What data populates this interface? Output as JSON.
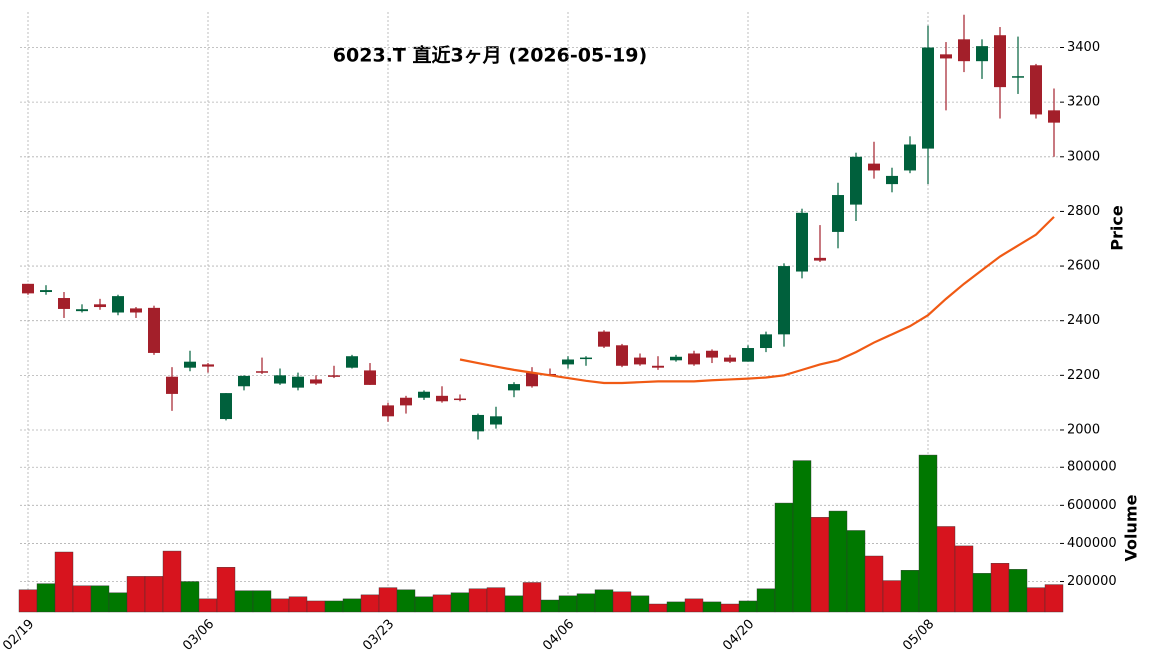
{
  "chart_data": [
    {
      "type": "candlestick",
      "title": "6023.T  直近3ヶ月  (2026-05-19)",
      "ylabel": "Price",
      "open": [
        2535,
        2505,
        2483,
        2435,
        2460,
        2430,
        2445,
        2447,
        2195,
        2228,
        2240,
        2040,
        2160,
        2215,
        2170,
        2155,
        2185,
        2200,
        2228,
        2218,
        2090,
        2118,
        2118,
        2125,
        2115,
        1995,
        2020,
        2145,
        2210,
        2205,
        2240,
        2260,
        2360,
        2310,
        2265,
        2235,
        2255,
        2280,
        2290,
        2265,
        2250,
        2300,
        2350,
        2580,
        2630,
        2725,
        2825,
        2975,
        2900,
        2950,
        3030,
        3375,
        3430,
        3350,
        3445,
        3290,
        3335,
        3170
      ],
      "high": [
        2535,
        2530,
        2505,
        2460,
        2480,
        2495,
        2450,
        2455,
        2230,
        2290,
        2245,
        2135,
        2200,
        2265,
        2225,
        2210,
        2200,
        2235,
        2275,
        2245,
        2100,
        2125,
        2145,
        2160,
        2130,
        2060,
        2085,
        2175,
        2230,
        2225,
        2270,
        2270,
        2365,
        2315,
        2280,
        2270,
        2275,
        2290,
        2295,
        2275,
        2310,
        2360,
        2610,
        2810,
        2750,
        2905,
        3015,
        3055,
        2960,
        3075,
        3480,
        3420,
        3520,
        3430,
        3475,
        3440,
        3340,
        3250
      ],
      "low": [
        2495,
        2495,
        2410,
        2430,
        2440,
        2420,
        2410,
        2275,
        2070,
        2215,
        2210,
        2035,
        2145,
        2205,
        2165,
        2145,
        2165,
        2190,
        2225,
        2165,
        2030,
        2060,
        2110,
        2100,
        2105,
        1965,
        2005,
        2120,
        2155,
        2200,
        2225,
        2235,
        2300,
        2230,
        2235,
        2220,
        2250,
        2235,
        2245,
        2245,
        2250,
        2285,
        2305,
        2555,
        2615,
        2665,
        2765,
        2920,
        2870,
        2940,
        2900,
        3170,
        3310,
        3285,
        3140,
        3230,
        3140,
        3000
      ],
      "close": [
        2500,
        2512,
        2443,
        2442,
        2450,
        2490,
        2430,
        2282,
        2132,
        2250,
        2232,
        2135,
        2198,
        2210,
        2200,
        2195,
        2170,
        2195,
        2270,
        2165,
        2050,
        2090,
        2140,
        2105,
        2110,
        2055,
        2050,
        2168,
        2160,
        2200,
        2258,
        2265,
        2305,
        2235,
        2240,
        2228,
        2268,
        2240,
        2265,
        2250,
        2300,
        2350,
        2600,
        2795,
        2620,
        2860,
        3000,
        2950,
        2930,
        3045,
        3400,
        3360,
        3350,
        3405,
        3255,
        3295,
        3155,
        3125
      ],
      "up_color": "#00603c",
      "down_color": "#a31f2a",
      "ma": {
        "color": "#f05a14",
        "values": [
          null,
          null,
          null,
          null,
          null,
          null,
          null,
          null,
          null,
          null,
          null,
          null,
          null,
          null,
          null,
          null,
          null,
          null,
          null,
          null,
          null,
          null,
          null,
          null,
          2258,
          2245,
          2232,
          2220,
          2210,
          2200,
          2190,
          2180,
          2172,
          2172,
          2175,
          2178,
          2178,
          2178,
          2182,
          2185,
          2188,
          2192,
          2200,
          2220,
          2240,
          2255,
          2285,
          2320,
          2350,
          2380,
          2420,
          2480,
          2535,
          2585,
          2635,
          2675,
          2715,
          2780
        ]
      },
      "ylim": [
        1945,
        3530
      ],
      "yticks": [
        2000,
        2200,
        2400,
        2600,
        2800,
        3000,
        3200,
        3400
      ],
      "grid": true
    },
    {
      "type": "bar",
      "ylabel": "Volume",
      "categories": [
        "02/19",
        null,
        null,
        null,
        null,
        null,
        null,
        null,
        null,
        null,
        "03/06",
        null,
        null,
        null,
        null,
        null,
        null,
        null,
        null,
        null,
        "03/23",
        null,
        null,
        null,
        null,
        null,
        null,
        null,
        null,
        null,
        "04/06",
        null,
        null,
        null,
        null,
        null,
        null,
        null,
        null,
        null,
        "04/20",
        null,
        null,
        null,
        null,
        null,
        null,
        null,
        null,
        null,
        "05/08",
        null,
        null,
        null,
        null,
        null,
        null,
        null
      ],
      "values": [
        157000,
        189000,
        355000,
        178000,
        178000,
        141000,
        227000,
        227000,
        360000,
        200000,
        109000,
        275000,
        152000,
        152000,
        109000,
        120000,
        98000,
        98000,
        109000,
        130000,
        168000,
        157000,
        120000,
        130000,
        141000,
        162000,
        168000,
        125000,
        195000,
        103000,
        125000,
        136000,
        157000,
        146000,
        125000,
        82000,
        93000,
        109000,
        93000,
        82000,
        98000,
        162000,
        612000,
        835000,
        537000,
        570000,
        468000,
        334000,
        205000,
        259000,
        864000,
        489000,
        387000,
        243000,
        296000,
        264000,
        168000,
        184000
      ],
      "up_color": "#007800",
      "down_color": "#d7141e",
      "ylim": [
        40000,
        880000
      ],
      "yticks": [
        200000,
        400000,
        600000,
        800000
      ],
      "grid": true
    }
  ]
}
